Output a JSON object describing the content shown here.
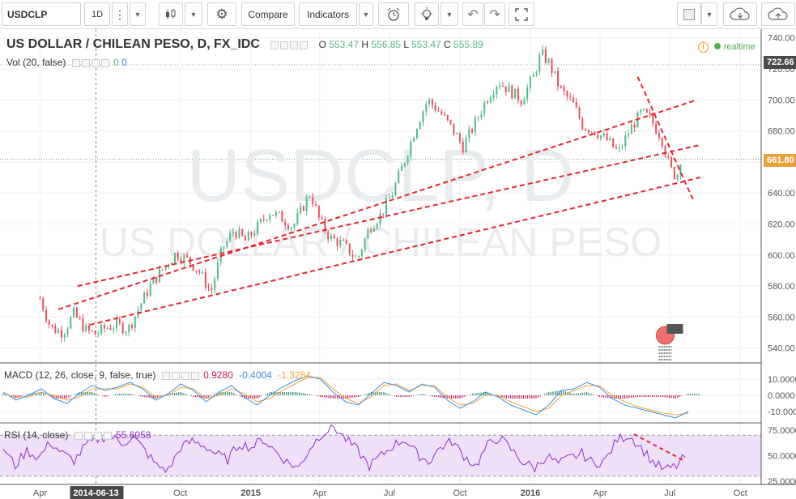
{
  "toolbar": {
    "symbol": "USDCLP",
    "interval": "1D",
    "compare": "Compare",
    "indicators": "Indicators"
  },
  "legend": {
    "title": "US DOLLAR / CHILEAN PESO, D, FX_IDC",
    "o_label": "O",
    "o": "553.47",
    "h_label": "H",
    "h": "556.85",
    "l_label": "L",
    "l": "553.47",
    "c_label": "C",
    "c": "555.89",
    "realtime": "realtime",
    "vol": "Vol (20, false)",
    "vol_v1": "0",
    "vol_v2": "0",
    "macd": "MACD (12, 26, close, 9, false, true)",
    "macd_v1": "0.9280",
    "macd_v2": "-0.4004",
    "macd_v3": "-1.3284",
    "rsi": "RSI (14, close)",
    "rsi_v": "55.6058"
  },
  "watermark": {
    "line1": "USDCLP, D",
    "line2": "US DOLLAR / CHILEAN PESO"
  },
  "colors": {
    "up": "#53b987",
    "down": "#eb4d5c",
    "trend": "#e8242e",
    "macd": "#3a8ee6",
    "signal": "#f4a43b",
    "hist_up": "#2c8c6c",
    "hist_down": "#c2185b",
    "rsi": "#8b2fc9",
    "rsi_band": "#efe0fa"
  },
  "chart_data": [
    {
      "type": "candlestick",
      "title": "US DOLLAR / CHILEAN PESO, D, FX_IDC",
      "x_ticks": [
        "Apr",
        "2014-06-13",
        "Oct",
        "2015",
        "Apr",
        "Jul",
        "Oct",
        "2016",
        "Apr",
        "Jul",
        "Oct"
      ],
      "y_ticks": [
        540,
        560,
        580,
        600,
        620,
        640,
        660,
        680,
        700,
        720,
        740
      ],
      "ylim": [
        532,
        743
      ],
      "price_labels": {
        "high_marker": "722.66",
        "last": "661.80"
      },
      "close_series": [
        [
          "2014-04-01",
          572
        ],
        [
          "2014-04-15",
          553
        ],
        [
          "2014-05-01",
          550
        ],
        [
          "2014-05-15",
          562
        ],
        [
          "2014-06-01",
          551
        ],
        [
          "2014-06-13",
          549
        ],
        [
          "2014-06-25",
          553
        ],
        [
          "2014-07-10",
          555
        ],
        [
          "2014-07-25",
          552
        ],
        [
          "2014-08-10",
          568
        ],
        [
          "2014-08-25",
          582
        ],
        [
          "2014-09-10",
          592
        ],
        [
          "2014-09-25",
          601
        ],
        [
          "2014-10-10",
          597
        ],
        [
          "2014-10-25",
          590
        ],
        [
          "2014-11-10",
          576
        ],
        [
          "2014-11-25",
          604
        ],
        [
          "2014-12-10",
          616
        ],
        [
          "2014-12-25",
          609
        ],
        [
          "2015-01-10",
          618
        ],
        [
          "2015-01-25",
          628
        ],
        [
          "2015-02-10",
          624
        ],
        [
          "2015-02-25",
          618
        ],
        [
          "2015-03-10",
          631
        ],
        [
          "2015-03-20",
          640
        ],
        [
          "2015-04-01",
          622
        ],
        [
          "2015-04-15",
          611
        ],
        [
          "2015-05-01",
          607
        ],
        [
          "2015-05-20",
          597
        ],
        [
          "2015-06-05",
          618
        ],
        [
          "2015-06-20",
          626
        ],
        [
          "2015-07-05",
          640
        ],
        [
          "2015-07-20",
          660
        ],
        [
          "2015-08-05",
          683
        ],
        [
          "2015-08-20",
          700
        ],
        [
          "2015-09-05",
          692
        ],
        [
          "2015-09-20",
          682
        ],
        [
          "2015-10-05",
          670
        ],
        [
          "2015-10-20",
          684
        ],
        [
          "2015-11-05",
          701
        ],
        [
          "2015-11-20",
          712
        ],
        [
          "2015-12-05",
          706
        ],
        [
          "2015-12-20",
          700
        ],
        [
          "2016-01-05",
          715
        ],
        [
          "2016-01-15",
          730
        ],
        [
          "2016-01-25",
          724
        ],
        [
          "2016-02-10",
          706
        ],
        [
          "2016-02-25",
          698
        ],
        [
          "2016-03-10",
          683
        ],
        [
          "2016-03-25",
          680
        ],
        [
          "2016-04-10",
          674
        ],
        [
          "2016-04-25",
          666
        ],
        [
          "2016-05-10",
          681
        ],
        [
          "2016-05-25",
          692
        ],
        [
          "2016-06-05",
          688
        ],
        [
          "2016-06-20",
          676
        ],
        [
          "2016-07-01",
          656
        ],
        [
          "2016-07-10",
          650
        ],
        [
          "2016-07-15",
          662
        ]
      ],
      "trendlines": [
        {
          "style": "dashed",
          "from": [
            "2014-04-25",
            565
          ],
          "to": [
            "2016-08-05",
            700
          ]
        },
        {
          "style": "dashed",
          "from": [
            "2014-05-20",
            580
          ],
          "to": [
            "2016-08-10",
            671
          ]
        },
        {
          "style": "dashed",
          "from": [
            "2014-06-05",
            555
          ],
          "to": [
            "2016-08-10",
            650
          ]
        },
        {
          "style": "dashed",
          "from": [
            "2016-05-20",
            715
          ],
          "to": [
            "2016-08-01",
            635
          ]
        }
      ]
    },
    {
      "type": "line",
      "title": "MACD (12, 26, close, 9, false, true)",
      "y_ticks": [
        "10.0000",
        "0.0000",
        "-10.0000"
      ],
      "ylim": [
        -16,
        20
      ],
      "series": [
        {
          "name": "MACD",
          "values": [
            2,
            -3,
            0,
            4,
            -2,
            -5,
            1,
            6,
            3,
            5,
            8,
            4,
            -3,
            1,
            7,
            3,
            -4,
            2,
            6,
            -1,
            -6,
            0,
            5,
            9,
            12,
            10,
            2,
            -4,
            -6,
            1,
            8,
            6,
            2,
            7,
            5,
            -3,
            -8,
            -4,
            2,
            -1,
            -6,
            -9,
            -12,
            -6,
            3,
            4,
            8,
            5,
            -2,
            -6,
            -8,
            -10,
            -12,
            -14,
            -10
          ]
        },
        {
          "name": "Signal",
          "values": [
            1,
            -1,
            -1,
            2,
            0,
            -3,
            -1,
            4,
            4,
            4,
            7,
            5,
            -1,
            0,
            5,
            4,
            -2,
            0,
            4,
            1,
            -4,
            -2,
            3,
            7,
            11,
            11,
            4,
            -2,
            -5,
            -1,
            6,
            7,
            3,
            6,
            6,
            -1,
            -6,
            -5,
            0,
            0,
            -4,
            -7,
            -10,
            -8,
            0,
            3,
            6,
            6,
            0,
            -4,
            -7,
            -9,
            -11,
            -12,
            -11
          ]
        }
      ]
    },
    {
      "type": "line",
      "title": "RSI (14, close)",
      "y_ticks": [
        "75.0000",
        "50.0000",
        "25.0000"
      ],
      "ylim": [
        22,
        82
      ],
      "series": [
        {
          "name": "RSI",
          "values": [
            58,
            40,
            55,
            48,
            63,
            52,
            45,
            60,
            66,
            70,
            62,
            68,
            55,
            40,
            36,
            58,
            64,
            60,
            52,
            46,
            62,
            58,
            66,
            55,
            44,
            38,
            58,
            72,
            78,
            66,
            55,
            40,
            50,
            60,
            66,
            52,
            44,
            58,
            64,
            50,
            40,
            60,
            68,
            56,
            44,
            38,
            50,
            42,
            48,
            52,
            42,
            46,
            66,
            70,
            58,
            44,
            36,
            40,
            52
          ]
        }
      ]
    }
  ]
}
